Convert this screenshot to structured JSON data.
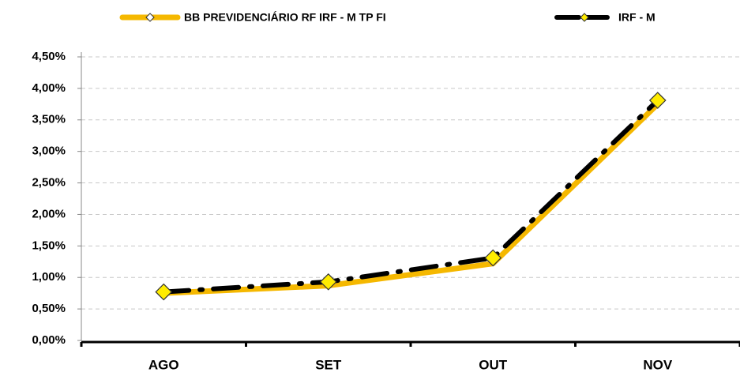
{
  "chart_data": {
    "type": "line",
    "categories": [
      "AGO",
      "SET",
      "OUT",
      "NOV"
    ],
    "series": [
      {
        "name": "BB PREVIDENCIÁRIO RF IRF - M TP FI",
        "color": "#f5b800",
        "dashed": false,
        "markers": false,
        "values": [
          0.75,
          0.87,
          1.22,
          3.75
        ]
      },
      {
        "name": "IRF - M",
        "color": "#000000",
        "marker_color": "#ffec00",
        "dashed": true,
        "markers": true,
        "values": [
          0.77,
          0.93,
          1.31,
          3.81
        ]
      }
    ],
    "ylim": [
      0,
      4.5
    ],
    "yticks": [
      {
        "value": 0,
        "label": "0,00%"
      },
      {
        "value": 0.5,
        "label": "0,50%"
      },
      {
        "value": 1,
        "label": "1,00%"
      },
      {
        "value": 1.5,
        "label": "1,50%"
      },
      {
        "value": 2,
        "label": "2,00%"
      },
      {
        "value": 2.5,
        "label": "2,50%"
      },
      {
        "value": 3,
        "label": "3,00%"
      },
      {
        "value": 3.5,
        "label": "3,50%"
      },
      {
        "value": 4,
        "label": "4,00%"
      },
      {
        "value": 4.5,
        "label": "4,50%"
      }
    ],
    "grid": true,
    "legend": "top"
  }
}
